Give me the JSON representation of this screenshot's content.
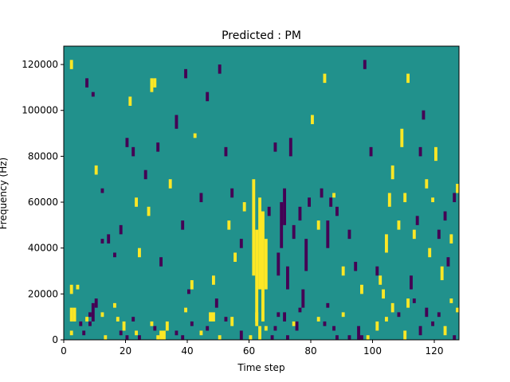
{
  "chart_data": {
    "type": "heatmap",
    "title": "Predicted : PM",
    "xlabel": "Time step",
    "ylabel": "Frequency (Hz)",
    "xlim": [
      0,
      128
    ],
    "ylim": [
      0,
      128000
    ],
    "xticks": [
      0,
      20,
      40,
      60,
      80,
      100,
      120
    ],
    "yticks": [
      0,
      20000,
      40000,
      60000,
      80000,
      100000,
      120000
    ],
    "ytick_labels": [
      "0",
      "20000",
      "40000",
      "60000",
      "80000",
      "100000",
      "120000"
    ],
    "n_time_steps": 128,
    "n_freq_bins": 64,
    "bin_height_hz": 2000,
    "colormap": {
      "low": "#440154",
      "mid": "#21918c",
      "high": "#fde725"
    },
    "background_value": "mid",
    "cells": [
      {
        "t": 2,
        "f0": 2000,
        "f1": 4000,
        "v": "high"
      },
      {
        "t": 2,
        "f0": 8000,
        "f1": 14000,
        "v": "high"
      },
      {
        "t": 3,
        "f0": 8000,
        "f1": 14000,
        "v": "high"
      },
      {
        "t": 2,
        "f0": 20000,
        "f1": 24000,
        "v": "high"
      },
      {
        "t": 4,
        "f0": 22000,
        "f1": 24000,
        "v": "high"
      },
      {
        "t": 5,
        "f0": 6000,
        "f1": 8000,
        "v": "low"
      },
      {
        "t": 6,
        "f0": 2000,
        "f1": 4000,
        "v": "low"
      },
      {
        "t": 7,
        "f0": 8000,
        "f1": 10000,
        "v": "high"
      },
      {
        "t": 8,
        "f0": 10000,
        "f1": 12000,
        "v": "low"
      },
      {
        "t": 8,
        "f0": 6000,
        "f1": 8000,
        "v": "low"
      },
      {
        "t": 9,
        "f0": 8000,
        "f1": 16000,
        "v": "low"
      },
      {
        "t": 10,
        "f0": 14000,
        "f1": 18000,
        "v": "low"
      },
      {
        "t": 12,
        "f0": 10000,
        "f1": 12000,
        "v": "high"
      },
      {
        "t": 13,
        "f0": 0,
        "f1": 2000,
        "v": "high"
      },
      {
        "t": 16,
        "f0": 14000,
        "f1": 16000,
        "v": "high"
      },
      {
        "t": 17,
        "f0": 8000,
        "f1": 10000,
        "v": "high"
      },
      {
        "t": 18,
        "f0": 2000,
        "f1": 4000,
        "v": "low"
      },
      {
        "t": 19,
        "f0": 4000,
        "f1": 8000,
        "v": "high"
      },
      {
        "t": 20,
        "f0": 0,
        "f1": 2000,
        "v": "low"
      },
      {
        "t": 22,
        "f0": 8000,
        "f1": 10000,
        "v": "low"
      },
      {
        "t": 23,
        "f0": 2000,
        "f1": 4000,
        "v": "high"
      },
      {
        "t": 24,
        "f0": 0,
        "f1": 2000,
        "v": "low"
      },
      {
        "t": 28,
        "f0": 6000,
        "f1": 8000,
        "v": "high"
      },
      {
        "t": 29,
        "f0": 4000,
        "f1": 6000,
        "v": "low"
      },
      {
        "t": 30,
        "f0": 0,
        "f1": 2000,
        "v": "high"
      },
      {
        "t": 31,
        "f0": 0,
        "f1": 4000,
        "v": "high"
      },
      {
        "t": 32,
        "f0": 0,
        "f1": 4000,
        "v": "high"
      },
      {
        "t": 33,
        "f0": 4000,
        "f1": 8000,
        "v": "high"
      },
      {
        "t": 36,
        "f0": 2000,
        "f1": 4000,
        "v": "low"
      },
      {
        "t": 38,
        "f0": 0,
        "f1": 2000,
        "v": "low"
      },
      {
        "t": 39,
        "f0": 12000,
        "f1": 14000,
        "v": "high"
      },
      {
        "t": 40,
        "f0": 20000,
        "f1": 22000,
        "v": "low"
      },
      {
        "t": 41,
        "f0": 6000,
        "f1": 8000,
        "v": "low"
      },
      {
        "t": 44,
        "f0": 2000,
        "f1": 4000,
        "v": "high"
      },
      {
        "t": 46,
        "f0": 4000,
        "f1": 6000,
        "v": "low"
      },
      {
        "t": 47,
        "f0": 8000,
        "f1": 12000,
        "v": "high"
      },
      {
        "t": 48,
        "f0": 8000,
        "f1": 12000,
        "v": "high"
      },
      {
        "t": 49,
        "f0": 14000,
        "f1": 18000,
        "v": "low"
      },
      {
        "t": 50,
        "f0": 0,
        "f1": 2000,
        "v": "high"
      },
      {
        "t": 52,
        "f0": 8000,
        "f1": 10000,
        "v": "low"
      },
      {
        "t": 54,
        "f0": 6000,
        "f1": 10000,
        "v": "high"
      },
      {
        "t": 57,
        "f0": 0,
        "f1": 4000,
        "v": "low"
      },
      {
        "t": 60,
        "f0": 0,
        "f1": 2000,
        "v": "high"
      },
      {
        "t": 62,
        "f0": 8000,
        "f1": 12000,
        "v": "high"
      },
      {
        "t": 63,
        "f0": 0,
        "f1": 6000,
        "v": "high"
      },
      {
        "t": 65,
        "f0": 4000,
        "f1": 6000,
        "v": "high"
      },
      {
        "t": 67,
        "f0": 0,
        "f1": 2000,
        "v": "low"
      },
      {
        "t": 68,
        "f0": 4000,
        "f1": 6000,
        "v": "low"
      },
      {
        "t": 69,
        "f0": 10000,
        "f1": 12000,
        "v": "low"
      },
      {
        "t": 71,
        "f0": 8000,
        "f1": 12000,
        "v": "low"
      },
      {
        "t": 72,
        "f0": 0,
        "f1": 2000,
        "v": "low"
      },
      {
        "t": 74,
        "f0": 6000,
        "f1": 8000,
        "v": "high"
      },
      {
        "t": 75,
        "f0": 4000,
        "f1": 8000,
        "v": "low"
      },
      {
        "t": 76,
        "f0": 12000,
        "f1": 14000,
        "v": "low"
      },
      {
        "t": 77,
        "f0": 14000,
        "f1": 22000,
        "v": "low"
      },
      {
        "t": 82,
        "f0": 8000,
        "f1": 10000,
        "v": "high"
      },
      {
        "t": 84,
        "f0": 6000,
        "f1": 8000,
        "v": "low"
      },
      {
        "t": 85,
        "f0": 14000,
        "f1": 16000,
        "v": "low"
      },
      {
        "t": 87,
        "f0": 4000,
        "f1": 6000,
        "v": "low"
      },
      {
        "t": 88,
        "f0": 0,
        "f1": 2000,
        "v": "low"
      },
      {
        "t": 90,
        "f0": 10000,
        "f1": 12000,
        "v": "high"
      },
      {
        "t": 92,
        "f0": 0,
        "f1": 2000,
        "v": "low"
      },
      {
        "t": 95,
        "f0": 0,
        "f1": 6000,
        "v": "low"
      },
      {
        "t": 96,
        "f0": 0,
        "f1": 2000,
        "v": "low"
      },
      {
        "t": 98,
        "f0": 0,
        "f1": 2000,
        "v": "high"
      },
      {
        "t": 101,
        "f0": 4000,
        "f1": 8000,
        "v": "high"
      },
      {
        "t": 104,
        "f0": 8000,
        "f1": 10000,
        "v": "high"
      },
      {
        "t": 106,
        "f0": 12000,
        "f1": 16000,
        "v": "high"
      },
      {
        "t": 108,
        "f0": 10000,
        "f1": 12000,
        "v": "low"
      },
      {
        "t": 110,
        "f0": 0,
        "f1": 4000,
        "v": "high"
      },
      {
        "t": 111,
        "f0": 14000,
        "f1": 18000,
        "v": "high"
      },
      {
        "t": 113,
        "f0": 16000,
        "f1": 18000,
        "v": "low"
      },
      {
        "t": 115,
        "f0": 2000,
        "f1": 6000,
        "v": "low"
      },
      {
        "t": 117,
        "f0": 10000,
        "f1": 14000,
        "v": "low"
      },
      {
        "t": 119,
        "f0": 6000,
        "f1": 8000,
        "v": "low"
      },
      {
        "t": 121,
        "f0": 10000,
        "f1": 12000,
        "v": "low"
      },
      {
        "t": 123,
        "f0": 2000,
        "f1": 6000,
        "v": "high"
      },
      {
        "t": 125,
        "f0": 16000,
        "f1": 18000,
        "v": "high"
      },
      {
        "t": 126,
        "f0": 0,
        "f1": 2000,
        "v": "low"
      },
      {
        "t": 127,
        "f0": 12000,
        "f1": 14000,
        "v": "high"
      },
      {
        "t": 2,
        "f0": 118000,
        "f1": 122000,
        "v": "high"
      },
      {
        "t": 7,
        "f0": 110000,
        "f1": 114000,
        "v": "low"
      },
      {
        "t": 9,
        "f0": 106000,
        "f1": 108000,
        "v": "low"
      },
      {
        "t": 12,
        "f0": 64000,
        "f1": 66000,
        "v": "low"
      },
      {
        "t": 10,
        "f0": 72000,
        "f1": 76000,
        "v": "high"
      },
      {
        "t": 12,
        "f0": 42000,
        "f1": 44000,
        "v": "low"
      },
      {
        "t": 14,
        "f0": 42000,
        "f1": 46000,
        "v": "low"
      },
      {
        "t": 16,
        "f0": 36000,
        "f1": 38000,
        "v": "low"
      },
      {
        "t": 18,
        "f0": 46000,
        "f1": 50000,
        "v": "low"
      },
      {
        "t": 20,
        "f0": 84000,
        "f1": 88000,
        "v": "low"
      },
      {
        "t": 21,
        "f0": 102000,
        "f1": 106000,
        "v": "high"
      },
      {
        "t": 22,
        "f0": 80000,
        "f1": 84000,
        "v": "low"
      },
      {
        "t": 23,
        "f0": 58000,
        "f1": 62000,
        "v": "high"
      },
      {
        "t": 24,
        "f0": 36000,
        "f1": 40000,
        "v": "high"
      },
      {
        "t": 26,
        "f0": 70000,
        "f1": 74000,
        "v": "low"
      },
      {
        "t": 27,
        "f0": 54000,
        "f1": 58000,
        "v": "high"
      },
      {
        "t": 28,
        "f0": 108000,
        "f1": 114000,
        "v": "high"
      },
      {
        "t": 29,
        "f0": 110000,
        "f1": 114000,
        "v": "high"
      },
      {
        "t": 30,
        "f0": 82000,
        "f1": 86000,
        "v": "low"
      },
      {
        "t": 31,
        "f0": 32000,
        "f1": 36000,
        "v": "low"
      },
      {
        "t": 34,
        "f0": 66000,
        "f1": 70000,
        "v": "high"
      },
      {
        "t": 36,
        "f0": 92000,
        "f1": 98000,
        "v": "low"
      },
      {
        "t": 38,
        "f0": 48000,
        "f1": 52000,
        "v": "low"
      },
      {
        "t": 39,
        "f0": 114000,
        "f1": 118000,
        "v": "low"
      },
      {
        "t": 41,
        "f0": 22000,
        "f1": 26000,
        "v": "high"
      },
      {
        "t": 42,
        "f0": 88000,
        "f1": 90000,
        "v": "high"
      },
      {
        "t": 44,
        "f0": 60000,
        "f1": 64000,
        "v": "low"
      },
      {
        "t": 46,
        "f0": 104000,
        "f1": 108000,
        "v": "low"
      },
      {
        "t": 48,
        "f0": 24000,
        "f1": 28000,
        "v": "high"
      },
      {
        "t": 50,
        "f0": 116000,
        "f1": 120000,
        "v": "low"
      },
      {
        "t": 52,
        "f0": 80000,
        "f1": 84000,
        "v": "low"
      },
      {
        "t": 53,
        "f0": 48000,
        "f1": 52000,
        "v": "high"
      },
      {
        "t": 54,
        "f0": 62000,
        "f1": 66000,
        "v": "low"
      },
      {
        "t": 55,
        "f0": 34000,
        "f1": 38000,
        "v": "high"
      },
      {
        "t": 57,
        "f0": 40000,
        "f1": 44000,
        "v": "low"
      },
      {
        "t": 58,
        "f0": 56000,
        "f1": 60000,
        "v": "high"
      },
      {
        "t": 61,
        "f0": 28000,
        "f1": 70000,
        "v": "high"
      },
      {
        "t": 62,
        "f0": 6000,
        "f1": 48000,
        "v": "high"
      },
      {
        "t": 63,
        "f0": 22000,
        "f1": 62000,
        "v": "high"
      },
      {
        "t": 64,
        "f0": 8000,
        "f1": 56000,
        "v": "high"
      },
      {
        "t": 65,
        "f0": 22000,
        "f1": 44000,
        "v": "high"
      },
      {
        "t": 66,
        "f0": 54000,
        "f1": 58000,
        "v": "low"
      },
      {
        "t": 68,
        "f0": 82000,
        "f1": 86000,
        "v": "low"
      },
      {
        "t": 69,
        "f0": 28000,
        "f1": 38000,
        "v": "low"
      },
      {
        "t": 70,
        "f0": 40000,
        "f1": 60000,
        "v": "low"
      },
      {
        "t": 71,
        "f0": 50000,
        "f1": 66000,
        "v": "low"
      },
      {
        "t": 72,
        "f0": 22000,
        "f1": 32000,
        "v": "low"
      },
      {
        "t": 73,
        "f0": 80000,
        "f1": 88000,
        "v": "low"
      },
      {
        "t": 74,
        "f0": 44000,
        "f1": 50000,
        "v": "low"
      },
      {
        "t": 76,
        "f0": 52000,
        "f1": 58000,
        "v": "low"
      },
      {
        "t": 78,
        "f0": 30000,
        "f1": 44000,
        "v": "low"
      },
      {
        "t": 79,
        "f0": 58000,
        "f1": 62000,
        "v": "low"
      },
      {
        "t": 80,
        "f0": 94000,
        "f1": 98000,
        "v": "high"
      },
      {
        "t": 82,
        "f0": 48000,
        "f1": 52000,
        "v": "high"
      },
      {
        "t": 83,
        "f0": 62000,
        "f1": 66000,
        "v": "low"
      },
      {
        "t": 84,
        "f0": 112000,
        "f1": 116000,
        "v": "high"
      },
      {
        "t": 85,
        "f0": 40000,
        "f1": 52000,
        "v": "low"
      },
      {
        "t": 86,
        "f0": 58000,
        "f1": 62000,
        "v": "low"
      },
      {
        "t": 87,
        "f0": 62000,
        "f1": 64000,
        "v": "high"
      },
      {
        "t": 88,
        "f0": 54000,
        "f1": 58000,
        "v": "low"
      },
      {
        "t": 90,
        "f0": 28000,
        "f1": 32000,
        "v": "high"
      },
      {
        "t": 92,
        "f0": 44000,
        "f1": 48000,
        "v": "low"
      },
      {
        "t": 94,
        "f0": 30000,
        "f1": 34000,
        "v": "low"
      },
      {
        "t": 96,
        "f0": 20000,
        "f1": 24000,
        "v": "high"
      },
      {
        "t": 97,
        "f0": 118000,
        "f1": 122000,
        "v": "low"
      },
      {
        "t": 99,
        "f0": 80000,
        "f1": 84000,
        "v": "low"
      },
      {
        "t": 101,
        "f0": 28000,
        "f1": 32000,
        "v": "low"
      },
      {
        "t": 102,
        "f0": 24000,
        "f1": 28000,
        "v": "high"
      },
      {
        "t": 103,
        "f0": 18000,
        "f1": 22000,
        "v": "high"
      },
      {
        "t": 104,
        "f0": 38000,
        "f1": 46000,
        "v": "high"
      },
      {
        "t": 105,
        "f0": 58000,
        "f1": 64000,
        "v": "high"
      },
      {
        "t": 106,
        "f0": 70000,
        "f1": 76000,
        "v": "high"
      },
      {
        "t": 108,
        "f0": 48000,
        "f1": 52000,
        "v": "high"
      },
      {
        "t": 109,
        "f0": 84000,
        "f1": 92000,
        "v": "high"
      },
      {
        "t": 110,
        "f0": 60000,
        "f1": 64000,
        "v": "high"
      },
      {
        "t": 111,
        "f0": 112000,
        "f1": 116000,
        "v": "high"
      },
      {
        "t": 112,
        "f0": 22000,
        "f1": 28000,
        "v": "low"
      },
      {
        "t": 113,
        "f0": 44000,
        "f1": 48000,
        "v": "high"
      },
      {
        "t": 114,
        "f0": 50000,
        "f1": 54000,
        "v": "low"
      },
      {
        "t": 115,
        "f0": 80000,
        "f1": 84000,
        "v": "low"
      },
      {
        "t": 116,
        "f0": 96000,
        "f1": 100000,
        "v": "low"
      },
      {
        "t": 117,
        "f0": 66000,
        "f1": 70000,
        "v": "high"
      },
      {
        "t": 118,
        "f0": 36000,
        "f1": 40000,
        "v": "high"
      },
      {
        "t": 119,
        "f0": 60000,
        "f1": 62000,
        "v": "high"
      },
      {
        "t": 120,
        "f0": 78000,
        "f1": 84000,
        "v": "high"
      },
      {
        "t": 121,
        "f0": 44000,
        "f1": 48000,
        "v": "low"
      },
      {
        "t": 122,
        "f0": 26000,
        "f1": 32000,
        "v": "high"
      },
      {
        "t": 123,
        "f0": 52000,
        "f1": 56000,
        "v": "low"
      },
      {
        "t": 124,
        "f0": 32000,
        "f1": 36000,
        "v": "low"
      },
      {
        "t": 125,
        "f0": 42000,
        "f1": 46000,
        "v": "high"
      },
      {
        "t": 126,
        "f0": 60000,
        "f1": 64000,
        "v": "low"
      },
      {
        "t": 127,
        "f0": 64000,
        "f1": 68000,
        "v": "high"
      }
    ]
  }
}
